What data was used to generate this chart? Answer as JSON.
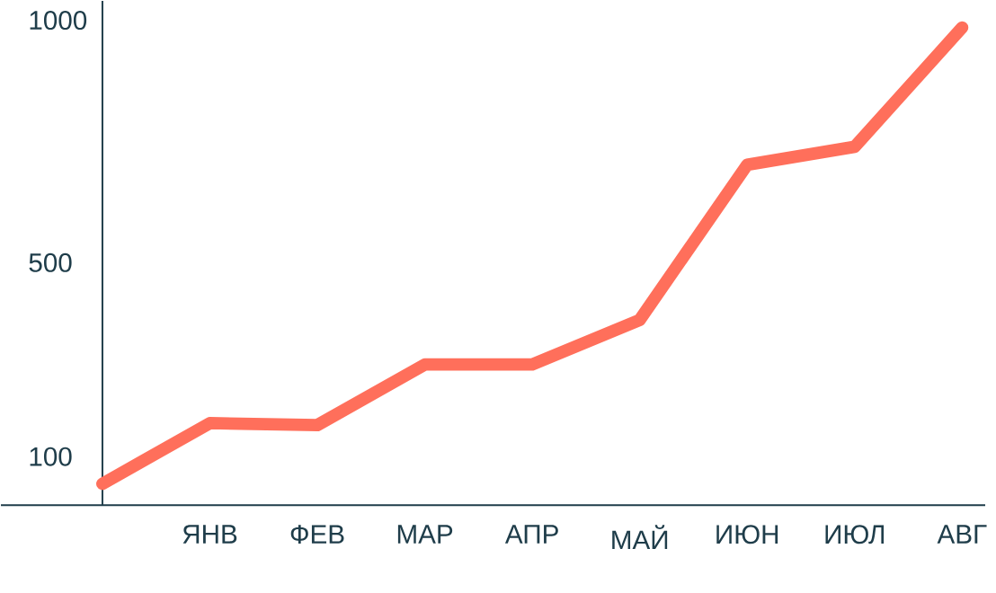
{
  "chart_data": {
    "type": "line",
    "categories": [
      null,
      "ЯНВ",
      "ФЕВ",
      "МАР",
      "АПР",
      "МАЙ",
      "ИЮН",
      "ИЮЛ",
      "АВГ"
    ],
    "series": [
      {
        "color": "#ff6f5b",
        "values": [
          44,
          169,
          165,
          290,
          290,
          382,
          702,
          739,
          985
        ]
      }
    ],
    "ylim": [
      0,
      1040
    ],
    "yticks": [
      100,
      500,
      1000
    ],
    "grid": false,
    "marker": "none",
    "line_style": "solid"
  }
}
